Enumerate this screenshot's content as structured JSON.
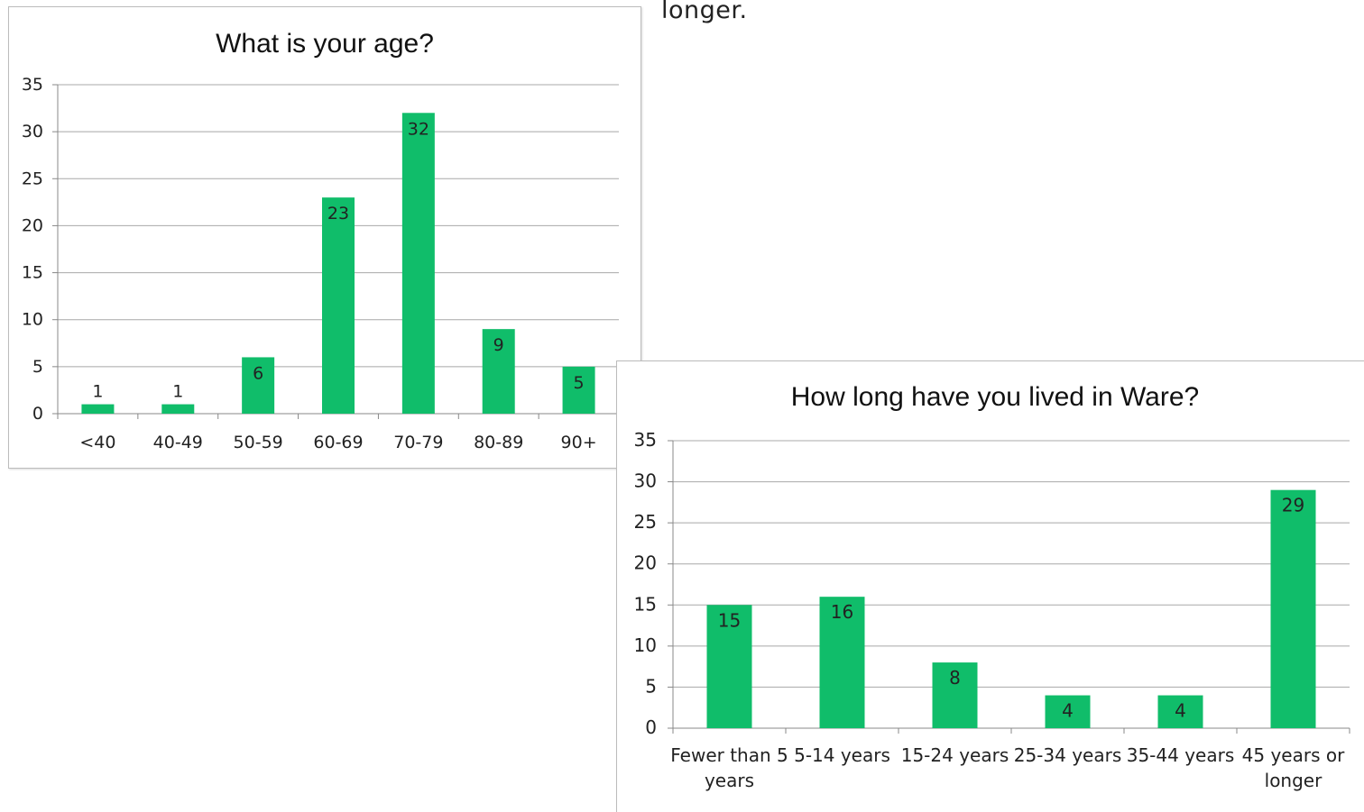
{
  "page": {
    "top_text": "longer."
  },
  "chart_data": [
    {
      "type": "bar",
      "title": "What is your age?",
      "xlabel": "",
      "ylabel": "",
      "categories": [
        "<40",
        "40-49",
        "50-59",
        "60-69",
        "70-79",
        "80-89",
        "90+"
      ],
      "values": [
        1,
        1,
        6,
        23,
        32,
        9,
        5
      ],
      "ylim": [
        0,
        35
      ],
      "yticks": [
        0,
        5,
        10,
        15,
        20,
        25,
        30,
        35
      ],
      "data_labels": true,
      "grid": true,
      "legend": "none",
      "bar_color": "#10bd6a"
    },
    {
      "type": "bar",
      "title": "How long have you lived in Ware?",
      "xlabel": "",
      "ylabel": "",
      "categories": [
        "Fewer than 5 years",
        "5-14 years",
        "15-24 years",
        "25-34 years",
        "35-44 years",
        "45 years or longer"
      ],
      "values": [
        15,
        16,
        8,
        4,
        4,
        29
      ],
      "ylim": [
        0,
        35
      ],
      "yticks": [
        0,
        5,
        10,
        15,
        20,
        25,
        30,
        35
      ],
      "data_labels": true,
      "grid": true,
      "legend": "none",
      "bar_color": "#10bd6a"
    }
  ]
}
